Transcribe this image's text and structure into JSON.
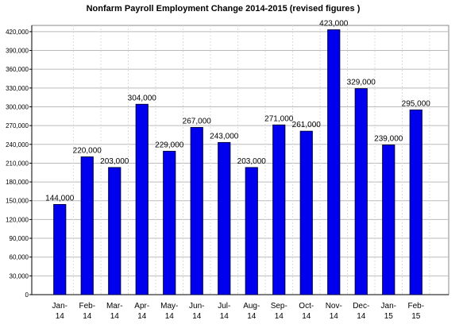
{
  "chart_data": {
    "type": "bar",
    "title": "Nonfarm Payroll Employment Change 2014-2015  (revised figures )",
    "categories": [
      "Jan-14",
      "Feb-14",
      "Mar-14",
      "Apr-14",
      "May-14",
      "Jun-14",
      "Jul-14",
      "Aug-14",
      "Sep-14",
      "Oct-14",
      "Nov-14",
      "Dec-14",
      "Jan-15",
      "Feb-15"
    ],
    "values": [
      144000,
      220000,
      203000,
      304000,
      229000,
      267000,
      243000,
      203000,
      271000,
      261000,
      423000,
      329000,
      239000,
      295000
    ],
    "value_labels": [
      "144,000",
      "220,000",
      "203,000",
      "304,000",
      "229,000",
      "267,000",
      "243,000",
      "203,000",
      "271,000",
      "261,000",
      "423,000",
      "329,000",
      "239,000",
      "295,000"
    ],
    "color": "#0000ee",
    "ylim": [
      0,
      430000
    ],
    "yticks": [
      0,
      {
        "value": 30000,
        "label": "30,000"
      },
      {
        "value": 60000,
        "label": "60,000"
      },
      {
        "value": 90000,
        "label": "90,000"
      },
      {
        "value": 120000,
        "label": "120,000"
      },
      {
        "value": 150000,
        "label": "150,000"
      },
      {
        "value": 180000,
        "label": "180,000"
      },
      {
        "value": 210000,
        "label": "210,000"
      },
      {
        "value": 240000,
        "label": "240,000"
      },
      {
        "value": 270000,
        "label": "270,000"
      },
      {
        "value": 300000,
        "label": "300,000"
      },
      {
        "value": 330000,
        "label": "330,000"
      },
      {
        "value": 360000,
        "label": "360,000"
      },
      {
        "value": 390000,
        "label": "390,000"
      },
      {
        "value": 420000,
        "label": "420,000"
      }
    ],
    "grid": true
  }
}
